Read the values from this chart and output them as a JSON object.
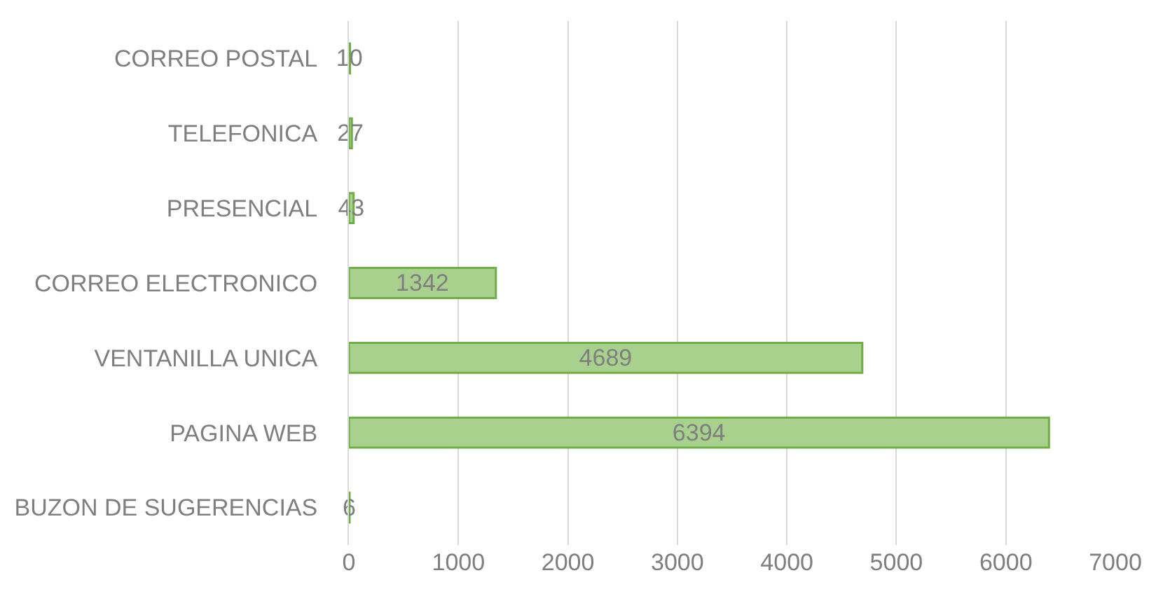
{
  "chart_data": {
    "type": "bar",
    "orientation": "horizontal",
    "categories": [
      "CORREO POSTAL",
      "TELEFONICA",
      "PRESENCIAL",
      "CORREO ELECTRONICO",
      "VENTANILLA UNICA",
      "PAGINA WEB",
      "BUZON DE SUGERENCIAS"
    ],
    "values": [
      10,
      27,
      43,
      1342,
      4689,
      6394,
      6
    ],
    "color": "#a9d18e",
    "xlim": [
      0,
      7000
    ],
    "xticks": [
      0,
      1000,
      2000,
      3000,
      4000,
      5000,
      6000,
      7000
    ],
    "grid": "x",
    "data_labels": true,
    "legend": false
  }
}
